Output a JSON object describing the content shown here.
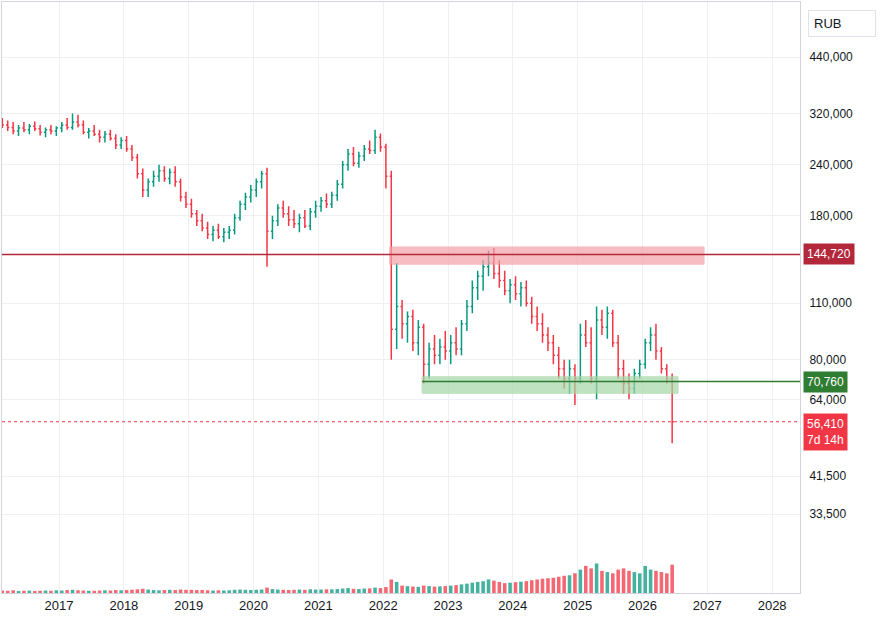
{
  "chart_data": {
    "type": "ohlc",
    "log": "y",
    "grid": true,
    "currency_label": "RUB",
    "x": [
      2016.125,
      2016.208,
      2016.292,
      2016.375,
      2016.458,
      2016.542,
      2016.625,
      2016.708,
      2016.792,
      2016.875,
      2016.958,
      2017.042,
      2017.125,
      2017.208,
      2017.292,
      2017.375,
      2017.458,
      2017.542,
      2017.625,
      2017.708,
      2017.792,
      2017.875,
      2017.958,
      2018.042,
      2018.125,
      2018.208,
      2018.292,
      2018.375,
      2018.458,
      2018.542,
      2018.625,
      2018.708,
      2018.792,
      2018.875,
      2018.958,
      2019.042,
      2019.125,
      2019.208,
      2019.292,
      2019.375,
      2019.458,
      2019.542,
      2019.625,
      2019.708,
      2019.792,
      2019.875,
      2019.958,
      2020.042,
      2020.125,
      2020.208,
      2020.292,
      2020.375,
      2020.458,
      2020.542,
      2020.625,
      2020.708,
      2020.792,
      2020.875,
      2020.958,
      2021.042,
      2021.125,
      2021.208,
      2021.292,
      2021.375,
      2021.458,
      2021.542,
      2021.625,
      2021.708,
      2021.792,
      2021.875,
      2021.958,
      2022.042,
      2022.125,
      2022.208,
      2022.292,
      2022.375,
      2022.458,
      2022.542,
      2022.625,
      2022.708,
      2022.792,
      2022.875,
      2022.958,
      2023.042,
      2023.125,
      2023.208,
      2023.292,
      2023.375,
      2023.458,
      2023.542,
      2023.625,
      2023.708,
      2023.792,
      2023.875,
      2023.958,
      2024.042,
      2024.125,
      2024.208,
      2024.292,
      2024.375,
      2024.458,
      2024.542,
      2024.625,
      2024.708,
      2024.792,
      2024.875,
      2024.958,
      2025.042,
      2025.125,
      2025.208,
      2025.292,
      2025.375,
      2025.458,
      2025.542,
      2025.625,
      2025.708,
      2025.792,
      2025.875,
      2025.958,
      2026.042,
      2026.125,
      2026.208,
      2026.292,
      2026.375,
      2026.458
    ],
    "open": [
      305000,
      300000,
      296000,
      290000,
      295000,
      292000,
      298000,
      294000,
      288000,
      292000,
      290000,
      295000,
      300000,
      296000,
      305000,
      300000,
      288000,
      290000,
      285000,
      280000,
      285000,
      278000,
      268000,
      275000,
      262000,
      250000,
      228000,
      208000,
      218000,
      225000,
      232000,
      222000,
      230000,
      218000,
      200000,
      192000,
      182000,
      175000,
      168000,
      162000,
      166000,
      160000,
      164000,
      166000,
      178000,
      192000,
      200000,
      208000,
      218000,
      228000,
      165000,
      175000,
      188000,
      182000,
      176000,
      172000,
      178000,
      170000,
      184000,
      190000,
      196000,
      192000,
      202000,
      215000,
      240000,
      255000,
      242000,
      252000,
      262000,
      260000,
      280000,
      265000,
      225000,
      95000,
      108000,
      98000,
      102000,
      88000,
      96000,
      78000,
      85000,
      82000,
      86000,
      84000,
      88000,
      85000,
      98000,
      108000,
      120000,
      128000,
      135000,
      138000,
      130000,
      125000,
      118000,
      122000,
      116000,
      120000,
      110000,
      102000,
      98000,
      92000,
      88000,
      82000,
      76000,
      72000,
      76000,
      72000,
      92000,
      88000,
      72000,
      100000,
      96000,
      104000,
      88000,
      76000,
      70000,
      68000,
      74000,
      78000,
      88000,
      92000,
      84000,
      76000,
      72000
    ],
    "high": [
      312000,
      308000,
      305000,
      300000,
      305000,
      302000,
      306000,
      300000,
      296000,
      300000,
      298000,
      305000,
      312000,
      320000,
      318000,
      308000,
      295000,
      300000,
      292000,
      290000,
      292000,
      285000,
      280000,
      282000,
      268000,
      255000,
      235000,
      222000,
      232000,
      240000,
      238000,
      235000,
      238000,
      222000,
      206000,
      198000,
      186000,
      182000,
      174000,
      170000,
      172000,
      168000,
      170000,
      182000,
      196000,
      205000,
      214000,
      222000,
      232000,
      236000,
      180000,
      192000,
      196000,
      190000,
      186000,
      182000,
      186000,
      188000,
      196000,
      200000,
      204000,
      206000,
      220000,
      245000,
      262000,
      265000,
      258000,
      268000,
      275000,
      292000,
      286000,
      270000,
      232000,
      138000,
      112000,
      105000,
      106000,
      100000,
      98000,
      88000,
      92000,
      90000,
      94000,
      92000,
      96000,
      100000,
      112000,
      125000,
      132000,
      140000,
      148000,
      150000,
      140000,
      132000,
      126000,
      128000,
      124000,
      125000,
      114000,
      108000,
      104000,
      96000,
      92000,
      86000,
      80000,
      80000,
      78000,
      98000,
      100000,
      96000,
      108000,
      106000,
      108000,
      106000,
      92000,
      80000,
      74000,
      76000,
      80000,
      90000,
      96000,
      98000,
      86000,
      78000,
      74000
    ],
    "low": [
      295000,
      290000,
      285000,
      282000,
      288000,
      285000,
      290000,
      283000,
      280000,
      285000,
      282000,
      288000,
      292000,
      292000,
      296000,
      285000,
      278000,
      282000,
      272000,
      272000,
      275000,
      262000,
      262000,
      258000,
      245000,
      222000,
      200000,
      200000,
      212000,
      218000,
      218000,
      215000,
      212000,
      195000,
      188000,
      178000,
      170000,
      165000,
      158000,
      156000,
      158000,
      155000,
      158000,
      162000,
      175000,
      186000,
      194000,
      200000,
      210000,
      135000,
      158000,
      170000,
      178000,
      170000,
      168000,
      164000,
      168000,
      166000,
      178000,
      184000,
      188000,
      188000,
      196000,
      210000,
      232000,
      238000,
      236000,
      245000,
      255000,
      255000,
      258000,
      210000,
      80000,
      85000,
      90000,
      88000,
      84000,
      82000,
      70000,
      72000,
      78000,
      78000,
      80000,
      78000,
      82000,
      82000,
      94000,
      104000,
      112000,
      118000,
      128000,
      126000,
      120000,
      115000,
      110000,
      112000,
      108000,
      108000,
      98000,
      94000,
      88000,
      84000,
      78000,
      72000,
      68000,
      66000,
      62000,
      70000,
      86000,
      70000,
      64000,
      92000,
      90000,
      86000,
      72000,
      66000,
      64000,
      66000,
      72000,
      76000,
      84000,
      80000,
      74000,
      70000,
      50000
    ],
    "close": [
      300000,
      296000,
      290000,
      295000,
      292000,
      298000,
      294000,
      288000,
      292000,
      290000,
      295000,
      300000,
      296000,
      305000,
      300000,
      288000,
      290000,
      285000,
      280000,
      285000,
      278000,
      268000,
      275000,
      262000,
      250000,
      228000,
      208000,
      218000,
      225000,
      232000,
      222000,
      230000,
      218000,
      200000,
      192000,
      182000,
      175000,
      168000,
      162000,
      166000,
      160000,
      164000,
      166000,
      178000,
      192000,
      200000,
      208000,
      218000,
      228000,
      165000,
      175000,
      188000,
      182000,
      176000,
      172000,
      178000,
      170000,
      184000,
      190000,
      196000,
      192000,
      202000,
      215000,
      240000,
      255000,
      242000,
      252000,
      262000,
      260000,
      280000,
      265000,
      225000,
      95000,
      108000,
      98000,
      102000,
      88000,
      96000,
      78000,
      85000,
      82000,
      86000,
      84000,
      88000,
      85000,
      98000,
      108000,
      120000,
      128000,
      135000,
      138000,
      130000,
      125000,
      118000,
      122000,
      116000,
      120000,
      110000,
      102000,
      98000,
      92000,
      88000,
      82000,
      76000,
      72000,
      76000,
      72000,
      92000,
      88000,
      72000,
      100000,
      96000,
      104000,
      88000,
      76000,
      70000,
      68000,
      74000,
      78000,
      88000,
      92000,
      84000,
      76000,
      72000,
      56410
    ],
    "volume": [
      10,
      9,
      11,
      8,
      9,
      10,
      8,
      9,
      10,
      9,
      11,
      10,
      12,
      13,
      11,
      10,
      9,
      9,
      10,
      11,
      10,
      12,
      11,
      12,
      13,
      15,
      17,
      14,
      12,
      11,
      12,
      13,
      12,
      14,
      13,
      13,
      12,
      12,
      11,
      10,
      11,
      10,
      11,
      13,
      14,
      13,
      12,
      13,
      14,
      22,
      16,
      14,
      13,
      12,
      13,
      14,
      13,
      15,
      14,
      14,
      15,
      15,
      16,
      18,
      20,
      17,
      16,
      18,
      19,
      22,
      20,
      24,
      55,
      45,
      30,
      28,
      26,
      25,
      30,
      28,
      26,
      27,
      28,
      30,
      32,
      35,
      38,
      42,
      45,
      48,
      55,
      50,
      45,
      40,
      42,
      44,
      46,
      48,
      52,
      55,
      58,
      60,
      62,
      66,
      70,
      72,
      80,
      95,
      110,
      100,
      120,
      90,
      85,
      80,
      95,
      100,
      90,
      85,
      80,
      110,
      95,
      90,
      85,
      80,
      115
    ],
    "xlim": [
      2016.12,
      2028.43
    ],
    "xticks": [
      2017,
      2018,
      2019,
      2020,
      2021,
      2022,
      2023,
      2024,
      2025,
      2026,
      2027,
      2028
    ],
    "ylim": [
      21500,
      600000
    ],
    "yticks": [
      {
        "value": 440000,
        "label": "440,000"
      },
      {
        "value": 320000,
        "label": "320,000"
      },
      {
        "value": 240000,
        "label": "240,000"
      },
      {
        "value": 180000,
        "label": "180,000"
      },
      {
        "value": 110000,
        "label": "110,000"
      },
      {
        "value": 80000,
        "label": "80,000"
      },
      {
        "value": 64000,
        "label": "64,000"
      },
      {
        "value": 41500,
        "label": "41,500"
      },
      {
        "value": 33500,
        "label": "33,500"
      }
    ],
    "y2lim": [
      0,
      2400
    ],
    "y2ticks": [],
    "levels": [
      {
        "value": 144720,
        "label": "144,720",
        "color": "#b2283a",
        "line_style": "solid"
      },
      {
        "value": 70760,
        "label": "70,760",
        "color": "#2e7d32",
        "line_style": "solid",
        "from": 2022.6
      },
      {
        "value": 56410,
        "label": "56,410",
        "note": "7d 14h",
        "color": "#f23645",
        "line_style": "dotted"
      }
    ],
    "zones": [
      {
        "x": [
          2022.1,
          2026.95
        ],
        "y": [
          137000,
          151000
        ],
        "color": "#f4a0a8"
      },
      {
        "x": [
          2022.6,
          2026.55
        ],
        "y": [
          66200,
          72700
        ],
        "color": "#a5d6a7"
      }
    ]
  }
}
